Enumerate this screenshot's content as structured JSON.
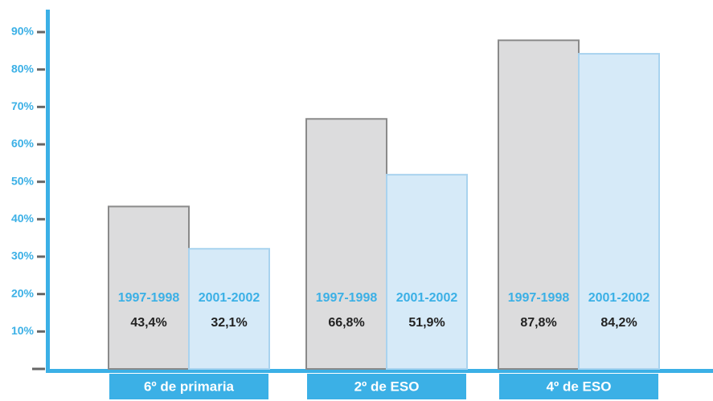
{
  "chart_data": {
    "type": "bar",
    "categories": [
      "6º de primaria",
      "2º de ESO",
      "4º de ESO"
    ],
    "series": [
      {
        "name": "1997-1998",
        "color": "#dcdcdd",
        "values": [
          43.4,
          66.8,
          87.8
        ],
        "value_labels": [
          "43,4%",
          "66,8%",
          "87,8%"
        ]
      },
      {
        "name": "2001-2002",
        "color": "#d6eaf8",
        "values": [
          32.1,
          51.9,
          84.2
        ],
        "value_labels": [
          "32,1%",
          "51,9%",
          "84,2%"
        ]
      }
    ],
    "ylim": [
      0,
      96
    ],
    "yticks": [
      {
        "value": 10,
        "label": "10%"
      },
      {
        "value": 20,
        "label": "20%"
      },
      {
        "value": 30,
        "label": "30%"
      },
      {
        "value": 40,
        "label": "40%"
      },
      {
        "value": 50,
        "label": "50%"
      },
      {
        "value": 60,
        "label": "60%"
      },
      {
        "value": 70,
        "label": "70%"
      },
      {
        "value": 80,
        "label": "80%"
      },
      {
        "value": 90,
        "label": "90%"
      }
    ]
  }
}
